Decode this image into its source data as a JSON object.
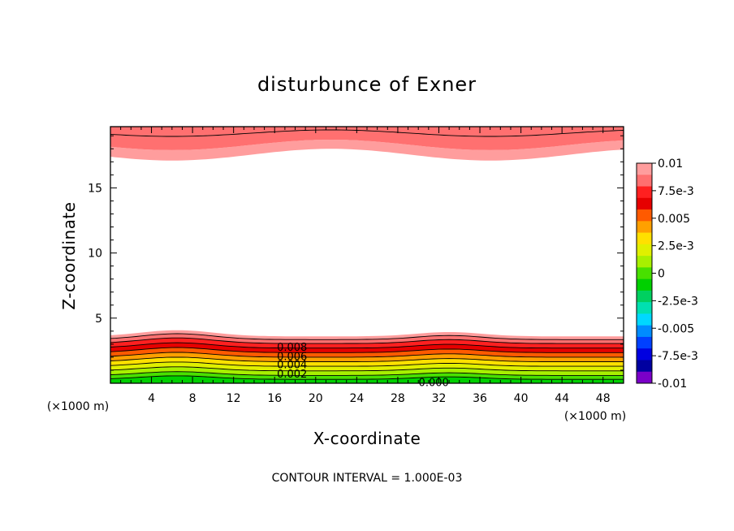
{
  "chart_data": {
    "type": "contour",
    "title": "disturbunce of Exner",
    "xlabel": "X-coordinate",
    "ylabel": "Z-coordinate",
    "x_unit": "(×1000 m)",
    "xlim": [
      0,
      50
    ],
    "ylim": [
      0,
      19.7
    ],
    "x_ticks": [
      4,
      8,
      12,
      16,
      20,
      24,
      28,
      32,
      36,
      40,
      44,
      48
    ],
    "y_ticks": [
      5,
      10,
      15
    ],
    "footer": "CONTOUR INTERVAL = 1.000E-03",
    "contour_labels": [
      {
        "text": "0.008",
        "x": 17.7,
        "z": 2.8
      },
      {
        "text": "0.006",
        "x": 17.7,
        "z": 2.1
      },
      {
        "text": "0.004",
        "x": 17.7,
        "z": 1.45
      },
      {
        "text": "0.002",
        "x": 17.7,
        "z": 0.75
      },
      {
        "text": "0.000",
        "x": 31.5,
        "z": 0.1
      }
    ],
    "colorbar": {
      "labels": [
        "0.01",
        "7.5e-3",
        "0.005",
        "2.5e-3",
        "0",
        "-2.5e-3",
        "-0.005",
        "-7.5e-3",
        "-0.01"
      ],
      "colors": [
        "#ff9d9d",
        "#ff7070",
        "#ff2020",
        "#e60000",
        "#ff5a00",
        "#ffa000",
        "#ffe000",
        "#e0f000",
        "#a8f000",
        "#48e000",
        "#00d000",
        "#00d060",
        "#00e0b0",
        "#00d8ff",
        "#008cff",
        "#0040ff",
        "#0000e0",
        "#0000a0",
        "#7a00c8"
      ]
    }
  }
}
